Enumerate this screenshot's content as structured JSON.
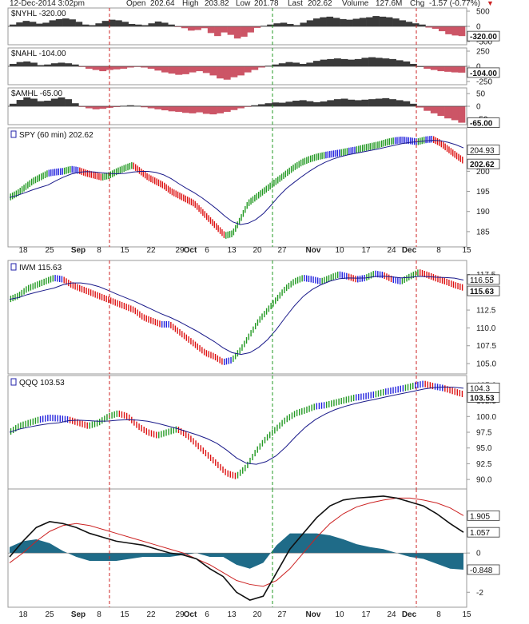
{
  "header": {
    "date_text": "12-Dec-2014 3:02pm",
    "open_label": "Open",
    "open_value": "202.64",
    "high_label": "High",
    "high_value": "203.82",
    "low_label": "Low",
    "low_value": "201.78",
    "last_label": "Last",
    "last_value": "202.62",
    "volume_label": "Volume",
    "volume_value": "127.6M",
    "chg_label": "Chg",
    "chg_value": "-1.57 (-0.77%)",
    "chg_marker": "▼"
  },
  "colors": {
    "breadth_up": "#3a3a3a",
    "breadth_down": "#cc5566",
    "price_up": "#229922",
    "price_down": "#dd1111",
    "price_neutral": "#2222dd",
    "moving_average": "#1a1a8a",
    "macd_line": "#111111",
    "signal_line": "#cc2222",
    "histogram": "#1f6b88",
    "marker_red": "#cc2222",
    "marker_green": "#229922"
  },
  "time_axis": {
    "labels": [
      "18",
      "25",
      "Sep",
      "8",
      "15",
      "22",
      "29",
      "Oct",
      "6",
      "13",
      "20",
      "27",
      "Nov",
      "10",
      "17",
      "24",
      "Dec",
      "8",
      "15"
    ],
    "bold_labels": [
      "Sep",
      "Oct",
      "Nov",
      "Dec"
    ]
  },
  "chart_data": [
    {
      "type": "area",
      "title": "$NYHL -320.00",
      "current_value": "-320.00",
      "y_ticks": [
        "500",
        "0",
        "-500"
      ],
      "ylim": [
        -500,
        500
      ],
      "series": [
        {
          "name": "$NYHL",
          "values": [
            60,
            130,
            180,
            150,
            90,
            120,
            200,
            240,
            260,
            230,
            150,
            60,
            40,
            100,
            180,
            220,
            200,
            150,
            80,
            60,
            40,
            100,
            160,
            120,
            60,
            -10,
            -60,
            -140,
            -120,
            -60,
            -220,
            -320,
            -200,
            -280,
            -400,
            -340,
            -200,
            -50,
            20,
            60,
            100,
            120,
            80,
            40,
            120,
            200,
            260,
            300,
            320,
            280,
            240,
            220,
            250,
            280,
            300,
            340,
            320,
            300,
            260,
            200,
            150,
            100,
            60,
            -40,
            -80,
            -160,
            -260,
            -300,
            -320
          ]
        }
      ]
    },
    {
      "type": "area",
      "title": "$NAHL -104.00",
      "current_value": "-104.00",
      "y_ticks": [
        "250",
        "0",
        "-250"
      ],
      "ylim": [
        -250,
        250
      ],
      "series": [
        {
          "name": "$NAHL",
          "values": [
            40,
            70,
            80,
            60,
            20,
            30,
            50,
            60,
            50,
            30,
            -10,
            -40,
            -60,
            -80,
            -60,
            -50,
            -40,
            -20,
            -10,
            -20,
            -40,
            -70,
            -100,
            -120,
            -140,
            -130,
            -100,
            -80,
            -110,
            -150,
            -200,
            -220,
            -180,
            -150,
            -100,
            -60,
            -20,
            10,
            30,
            50,
            70,
            60,
            40,
            60,
            90,
            110,
            120,
            130,
            120,
            110,
            120,
            140,
            150,
            140,
            130,
            120,
            100,
            80,
            40,
            0,
            -40,
            -60,
            -80,
            -90,
            -100,
            -104
          ]
        }
      ]
    },
    {
      "type": "area",
      "title": "$AMHL -65.00",
      "current_value": "-65.00",
      "y_ticks": [
        "50",
        "0",
        "-50"
      ],
      "ylim": [
        -60,
        60
      ],
      "series": [
        {
          "name": "$AMHL",
          "values": [
            10,
            25,
            35,
            30,
            20,
            22,
            30,
            35,
            28,
            12,
            -2,
            -8,
            -12,
            -10,
            -6,
            -3,
            2,
            4,
            2,
            -4,
            -8,
            -12,
            -16,
            -20,
            -22,
            -26,
            -28,
            -24,
            -30,
            -32,
            -28,
            -22,
            -15,
            -8,
            -2,
            4,
            8,
            12,
            15,
            14,
            18,
            22,
            24,
            20,
            16,
            19,
            24,
            28,
            30,
            26,
            24,
            26,
            28,
            30,
            32,
            28,
            24,
            20,
            10,
            -5,
            -18,
            -28,
            -38,
            -48,
            -55,
            -65
          ]
        }
      ]
    },
    {
      "type": "line",
      "title": "SPY (60 min) 202.62",
      "current_value": "202.62",
      "ma_value": "204.93",
      "y_ticks": [
        "205",
        "200",
        "195",
        "190",
        "185"
      ],
      "ylim": [
        182,
        210
      ],
      "series": [
        {
          "name": "SPY",
          "values": [
            193.5,
            194.5,
            196,
            197.5,
            198.5,
            199.5,
            199.8,
            200,
            200.5,
            200.2,
            199.5,
            199,
            198.5,
            199,
            200,
            200.8,
            201.5,
            200,
            198.5,
            197.5,
            196.5,
            195,
            194,
            193,
            192,
            190,
            188,
            186,
            184,
            184.5,
            188,
            192,
            193.5,
            195,
            196.5,
            198,
            199.5,
            201,
            202.2,
            203,
            203.6,
            204,
            204.3,
            204.6,
            205,
            205.3,
            205.8,
            206.2,
            206.6,
            207.2,
            207.6,
            207.8,
            207.6,
            207.3,
            207.8,
            208,
            207,
            205.5,
            204,
            202.62
          ]
        }
      ]
    },
    {
      "type": "line",
      "title": "IWM 115.63",
      "current_value": "115.63",
      "ma_value": "116.55",
      "y_ticks": [
        "117.5",
        "115.0",
        "112.5",
        "110.0",
        "107.5",
        "105.0"
      ],
      "ylim": [
        104,
        119
      ],
      "series": [
        {
          "name": "IWM",
          "values": [
            114,
            114.5,
            115.5,
            116,
            116.5,
            117,
            116.8,
            116,
            115.5,
            115,
            114.5,
            114,
            113.5,
            113,
            112.5,
            111.5,
            111,
            110.5,
            110.5,
            109.5,
            108.5,
            107.5,
            106.5,
            106,
            105.2,
            105.5,
            107,
            109,
            111,
            112.5,
            114,
            115.5,
            116.5,
            117,
            116.8,
            116.5,
            117,
            117.5,
            117.2,
            116.8,
            117,
            117.6,
            117.4,
            116.8,
            116.5,
            117.2,
            117.8,
            117.4,
            116.9,
            116.5,
            116,
            115.63
          ]
        }
      ]
    },
    {
      "type": "line",
      "title": "QQQ 103.53",
      "current_value": "103.53",
      "ma_value": "104.3",
      "y_ticks": [
        "105.0",
        "102.5",
        "100.0",
        "97.5",
        "95.0",
        "92.5",
        "90.0"
      ],
      "ylim": [
        89,
        106
      ],
      "series": [
        {
          "name": "QQQ",
          "values": [
            97.5,
            98.5,
            99,
            99.5,
            99.8,
            99.7,
            99.5,
            99,
            98.5,
            99,
            100,
            100.5,
            100,
            98.5,
            97.5,
            97,
            97.5,
            98,
            97,
            95.5,
            94,
            92.5,
            91,
            90.5,
            92,
            94.5,
            96.5,
            98,
            99.5,
            100.5,
            101,
            101.6,
            101.8,
            102.2,
            102.6,
            103,
            103.2,
            103.5,
            103.9,
            104.2,
            104.5,
            104.9,
            105.2,
            104.8,
            104.5,
            104,
            103.53
          ]
        }
      ]
    },
    {
      "type": "line",
      "title": "",
      "y_ticks": [
        "2",
        "0",
        "-2"
      ],
      "ylim": [
        -2.6,
        3.1
      ],
      "values_shown": [
        "1.905",
        "1.057",
        "-0.848"
      ],
      "series": [
        {
          "name": "",
          "values": [
            -0.2,
            0.6,
            1.3,
            1.6,
            1.5,
            1.3,
            1.0,
            0.8,
            0.6,
            0.5,
            0.4,
            0.2,
            0.0,
            -0.1,
            -0.3,
            -0.8,
            -1.2,
            -2.0,
            -2.4,
            -2.2,
            -1.0,
            0.2,
            1.0,
            1.8,
            2.4,
            2.7,
            2.8,
            2.85,
            2.9,
            2.8,
            2.6,
            2.4,
            2.0,
            1.5,
            1.057
          ]
        },
        {
          "name": "",
          "values": [
            -0.5,
            0.0,
            0.6,
            1.1,
            1.4,
            1.5,
            1.4,
            1.2,
            1.0,
            0.8,
            0.6,
            0.4,
            0.2,
            0.0,
            -0.3,
            -0.6,
            -1.0,
            -1.4,
            -1.6,
            -1.7,
            -1.4,
            -0.8,
            0.0,
            0.8,
            1.5,
            2.0,
            2.35,
            2.55,
            2.7,
            2.8,
            2.8,
            2.7,
            2.55,
            2.3,
            1.905
          ]
        },
        {
          "name": "",
          "values": [
            0.3,
            0.6,
            0.7,
            0.5,
            0.1,
            -0.2,
            -0.4,
            -0.4,
            -0.4,
            -0.3,
            -0.2,
            -0.2,
            -0.2,
            -0.1,
            0.0,
            -0.2,
            -0.2,
            -0.6,
            -0.8,
            -0.5,
            0.4,
            1.0,
            1.0,
            1.0,
            0.9,
            0.7,
            0.45,
            0.3,
            0.2,
            0.0,
            -0.2,
            -0.3,
            -0.55,
            -0.8,
            -0.848
          ]
        }
      ]
    }
  ]
}
